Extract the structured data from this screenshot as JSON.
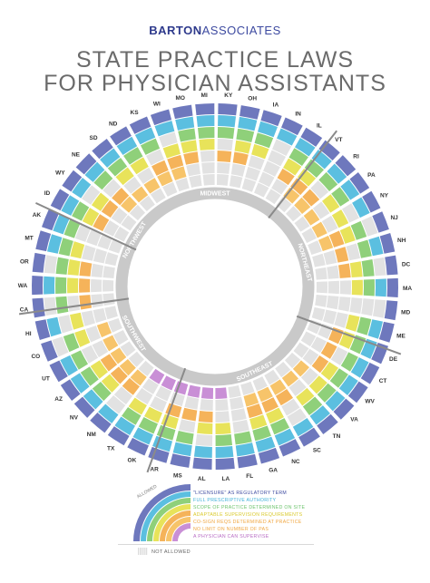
{
  "header": {
    "brand_bold": "BARTON",
    "brand_light": "ASSOCIATES",
    "title_line1": "STATE PRACTICE LAWS",
    "title_line2": "FOR PHYSICIAN ASSISTANTS"
  },
  "colors": {
    "licensure": "#6e78bd",
    "prescriptive": "#5bbfe0",
    "scope": "#8fd07a",
    "supervision": "#e8e35a",
    "cosign": "#f5b35a",
    "nolimit": "#f7c46a",
    "physician": "#c98fd6",
    "not_allowed": "#e2e2e2",
    "region_band": "#c9c9c9",
    "divider": "#8a8a8a"
  },
  "regions": [
    {
      "name": "MIDWEST"
    },
    {
      "name": "NORTHEAST"
    },
    {
      "name": "SOUTHEAST"
    },
    {
      "name": "SOUTHWEST"
    },
    {
      "name": "NORTHWEST"
    }
  ],
  "states": [
    "KY",
    "OH",
    "IA",
    "IN",
    "IL",
    "VT",
    "RI",
    "PA",
    "NY",
    "NJ",
    "NH",
    "DC",
    "MA",
    "MD",
    "ME",
    "DE",
    "CT",
    "WV",
    "VA",
    "TN",
    "SC",
    "NC",
    "GA",
    "FL",
    "LA",
    "AL",
    "MS",
    "AR",
    "OK",
    "TX",
    "NM",
    "NV",
    "AZ",
    "UT",
    "CO",
    "HI",
    "CA",
    "WA",
    "OR",
    "MT",
    "AK",
    "ID",
    "WY",
    "NE",
    "SD",
    "ND",
    "KS",
    "WI",
    "MO",
    "MI"
  ],
  "legend": {
    "allowed_label": "ALLOWED",
    "items": [
      "\"LICENSURE\" AS REGULATORY TERM",
      "FULL PRESCRIPTIVE AUTHORITY",
      "SCOPE OF PRACTICE DETERMINED ON SITE",
      "ADAPTABLE SUPERVISION REQUIREMENTS",
      "CO-SIGN REQS DETERMINED AT PRACTICE",
      "NO LIMIT ON NUMBER OF PAS",
      "A PHYSICIAN CAN SUPERVISE"
    ],
    "not_allowed_label": "NOT ALLOWED"
  }
}
